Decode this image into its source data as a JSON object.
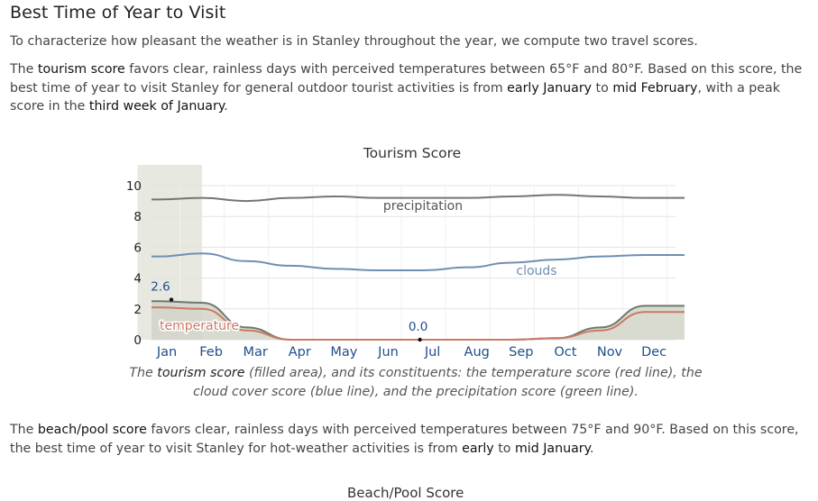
{
  "section": {
    "title": "Best Time of Year to Visit",
    "intro": "To characterize how pleasant the weather is in Stanley throughout the year, we compute two travel scores.",
    "tourism": {
      "t1": "The ",
      "score_name": "tourism score",
      "t2": " favors clear, rainless days with perceived temperatures between 65°F and 80°F. Based on this score, the best time of year to visit Stanley for general outdoor tourist activities is from ",
      "start": "early January",
      "t3": " to ",
      "end": "mid February",
      "t4": ", with a peak score in the ",
      "peak": "third week of January",
      "t5": "."
    },
    "caption": {
      "c1": "The ",
      "score_name": "tourism score",
      "c2": " (filled area), and its constituents: the temperature score (red line), the cloud cover score (blue line), and the precipitation score (green line)."
    },
    "beach": {
      "t1": "The ",
      "score_name": "beach/pool score",
      "t2": " favors clear, rainless days with perceived temperatures between 75°F and 90°F. Based on this score, the best time of year to visit Stanley for hot-weather activities is from ",
      "start": "early",
      "t3": " to ",
      "end": "mid January",
      "t4": "."
    },
    "next_chart_title": "Beach/Pool Score"
  },
  "chart_data": {
    "type": "area",
    "title": "Tourism Score",
    "categories": [
      "Jan",
      "Feb",
      "Mar",
      "Apr",
      "May",
      "Jun",
      "Jul",
      "Aug",
      "Sep",
      "Oct",
      "Nov",
      "Dec"
    ],
    "ylim": [
      0,
      10
    ],
    "yticks": [
      0,
      2,
      4,
      6,
      8,
      10
    ],
    "grid": true,
    "highlight_months": [
      "Jan",
      "Feb"
    ],
    "annotations": [
      {
        "label": "2.6",
        "x": "Jan",
        "value": 2.6
      },
      {
        "label": "0.0",
        "x": "Jul",
        "value": 0.0
      }
    ],
    "series": [
      {
        "name": "precipitation",
        "color": "#6e7a6e",
        "values": [
          9.1,
          9.2,
          9.0,
          9.2,
          9.3,
          9.2,
          9.2,
          9.2,
          9.3,
          9.4,
          9.3,
          9.2
        ]
      },
      {
        "name": "clouds",
        "color": "#6f8fb0",
        "values": [
          5.4,
          5.6,
          5.1,
          4.8,
          4.6,
          4.5,
          4.5,
          4.7,
          5.0,
          5.2,
          5.4,
          5.5
        ]
      },
      {
        "name": "temperature",
        "color": "#c97a66",
        "values": [
          2.1,
          2.0,
          0.6,
          0.0,
          0.0,
          0.0,
          0.0,
          0.0,
          0.0,
          0.1,
          0.6,
          1.8
        ]
      },
      {
        "name": "tourism",
        "color": "#8a8f80",
        "values": [
          2.5,
          2.4,
          0.8,
          0.0,
          0.0,
          0.0,
          0.0,
          0.0,
          0.0,
          0.1,
          0.8,
          2.2
        ]
      }
    ]
  },
  "colors": {
    "highlight": "#e7e8e0",
    "area_fill": "#d2d4c8",
    "area_line": "#6e7a6e",
    "axis_label": "#1f4e8c",
    "temperature_label": "#c97a66",
    "grid": "#e3e3e3"
  }
}
